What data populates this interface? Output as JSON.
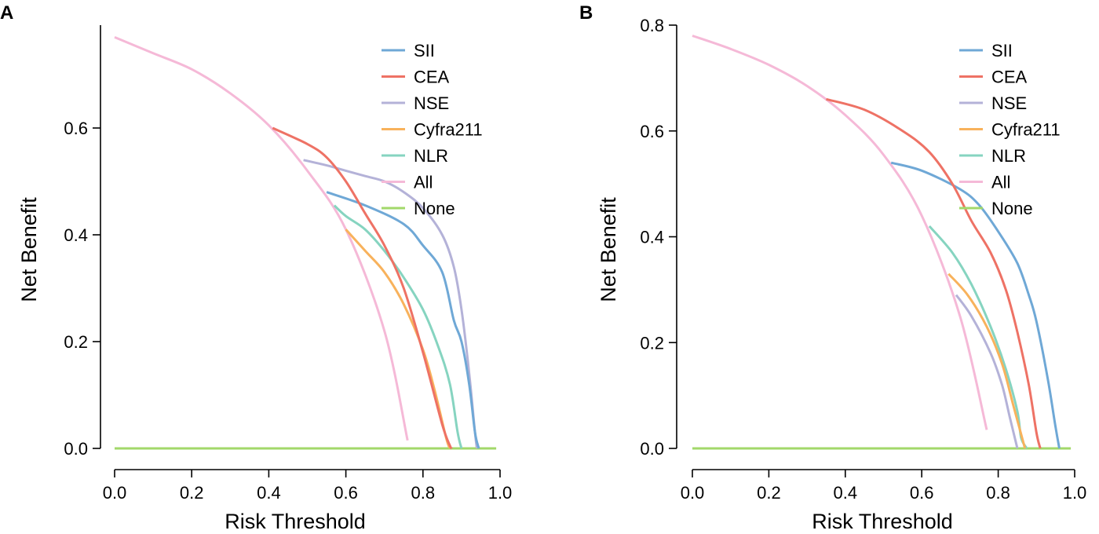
{
  "colors": {
    "SII": "#6fa8d6",
    "CEA": "#ee7265",
    "NSE": "#b4b2d8",
    "Cyfra211": "#f8b25c",
    "NLR": "#86d4c0",
    "All": "#f5b9d7",
    "None": "#a2d86a"
  },
  "chart_data": [
    {
      "panel": "A",
      "type": "line",
      "xlabel": "Risk Threshold",
      "ylabel": "Net Benefit",
      "xlim": [
        0,
        1
      ],
      "ylim": [
        0,
        0.8
      ],
      "xticks": [
        "0.0",
        "0.2",
        "0.4",
        "0.6",
        "0.8",
        "1.0"
      ],
      "yticks": [
        "0.0",
        "0.2",
        "0.4",
        "0.6"
      ],
      "ytick_values": [
        0,
        0.2,
        0.4,
        0.6
      ],
      "legend": [
        "SII",
        "CEA",
        "NSE",
        "Cyfra211",
        "NLR",
        "All",
        "None"
      ],
      "legend_position": "top-right",
      "series": [
        {
          "name": "All",
          "x": [
            0,
            0.1,
            0.2,
            0.3,
            0.4,
            0.5,
            0.6,
            0.7,
            0.76
          ],
          "y": [
            0.77,
            0.74,
            0.71,
            0.665,
            0.605,
            0.52,
            0.41,
            0.22,
            0.015
          ]
        },
        {
          "name": "SII",
          "x": [
            0.55,
            0.65,
            0.75,
            0.8,
            0.85,
            0.88,
            0.9,
            0.92,
            0.935,
            0.945
          ],
          "y": [
            0.48,
            0.455,
            0.42,
            0.38,
            0.33,
            0.24,
            0.2,
            0.12,
            0.03,
            0
          ]
        },
        {
          "name": "CEA",
          "x": [
            0.41,
            0.5,
            0.55,
            0.6,
            0.65,
            0.7,
            0.75,
            0.8,
            0.85,
            0.87,
            0.875
          ],
          "y": [
            0.6,
            0.57,
            0.545,
            0.5,
            0.44,
            0.38,
            0.3,
            0.18,
            0.045,
            0.005,
            0
          ]
        },
        {
          "name": "NSE",
          "x": [
            0.49,
            0.55,
            0.6,
            0.65,
            0.7,
            0.75,
            0.8,
            0.85,
            0.88,
            0.9,
            0.92,
            0.935,
            0.94
          ],
          "y": [
            0.54,
            0.53,
            0.52,
            0.51,
            0.5,
            0.48,
            0.45,
            0.4,
            0.34,
            0.26,
            0.14,
            0.03,
            0
          ]
        },
        {
          "name": "Cyfra211",
          "x": [
            0.6,
            0.65,
            0.7,
            0.75,
            0.8,
            0.83,
            0.86,
            0.87
          ],
          "y": [
            0.41,
            0.37,
            0.33,
            0.27,
            0.185,
            0.11,
            0.02,
            0
          ]
        },
        {
          "name": "NLR",
          "x": [
            0.57,
            0.6,
            0.65,
            0.7,
            0.75,
            0.8,
            0.84,
            0.87,
            0.89,
            0.9
          ],
          "y": [
            0.455,
            0.435,
            0.41,
            0.37,
            0.32,
            0.26,
            0.19,
            0.12,
            0.03,
            0
          ]
        },
        {
          "name": "None",
          "x": [
            0,
            0.99
          ],
          "y": [
            0,
            0
          ]
        }
      ]
    },
    {
      "panel": "B",
      "type": "line",
      "xlabel": "Risk Threshold",
      "ylabel": "Net Benefit",
      "xlim": [
        0,
        1
      ],
      "ylim": [
        0,
        0.8
      ],
      "xticks": [
        "0.0",
        "0.2",
        "0.4",
        "0.6",
        "0.8",
        "1.0"
      ],
      "yticks": [
        "0.0",
        "0.2",
        "0.4",
        "0.6",
        "0.8"
      ],
      "ytick_values": [
        0,
        0.2,
        0.4,
        0.6,
        0.8
      ],
      "legend": [
        "SII",
        "CEA",
        "NSE",
        "Cyfra211",
        "NLR",
        "All",
        "None"
      ],
      "legend_position": "top-right",
      "series": [
        {
          "name": "All",
          "x": [
            0,
            0.1,
            0.2,
            0.3,
            0.4,
            0.5,
            0.6,
            0.7,
            0.77
          ],
          "y": [
            0.78,
            0.755,
            0.725,
            0.685,
            0.63,
            0.555,
            0.44,
            0.25,
            0.035
          ]
        },
        {
          "name": "SII",
          "x": [
            0.52,
            0.6,
            0.7,
            0.75,
            0.8,
            0.85,
            0.88,
            0.9,
            0.93,
            0.95,
            0.96
          ],
          "y": [
            0.54,
            0.525,
            0.49,
            0.46,
            0.41,
            0.35,
            0.29,
            0.24,
            0.13,
            0.04,
            0
          ]
        },
        {
          "name": "CEA",
          "x": [
            0.35,
            0.45,
            0.55,
            0.62,
            0.68,
            0.73,
            0.78,
            0.82,
            0.85,
            0.88,
            0.9,
            0.91
          ],
          "y": [
            0.66,
            0.64,
            0.6,
            0.56,
            0.5,
            0.43,
            0.37,
            0.3,
            0.22,
            0.12,
            0.03,
            0
          ]
        },
        {
          "name": "NSE",
          "x": [
            0.69,
            0.73,
            0.78,
            0.81,
            0.83,
            0.85
          ],
          "y": [
            0.29,
            0.25,
            0.18,
            0.12,
            0.06,
            0
          ]
        },
        {
          "name": "Cyfra211",
          "x": [
            0.67,
            0.72,
            0.77,
            0.81,
            0.84,
            0.87
          ],
          "y": [
            0.33,
            0.29,
            0.23,
            0.16,
            0.08,
            0
          ]
        },
        {
          "name": "NLR",
          "x": [
            0.62,
            0.68,
            0.73,
            0.78,
            0.82,
            0.85,
            0.86,
            0.875
          ],
          "y": [
            0.42,
            0.37,
            0.31,
            0.23,
            0.15,
            0.07,
            0.02,
            0
          ]
        },
        {
          "name": "None",
          "x": [
            0,
            0.99
          ],
          "y": [
            0,
            0
          ]
        }
      ]
    }
  ]
}
